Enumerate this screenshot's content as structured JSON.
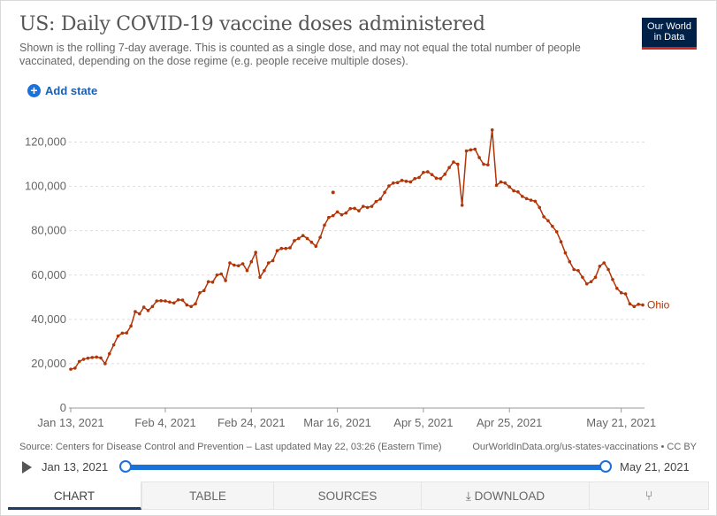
{
  "header": {
    "title": "US: Daily COVID-19 vaccine doses administered",
    "subtitle": "Shown is the rolling 7-day average. This is counted as a single dose, and may not equal the total number of people vaccinated, depending on the dose regime (e.g. people receive multiple doses).",
    "logo_line1": "Our World",
    "logo_line2": "in Data",
    "brand_color": "#002147",
    "brand_accent": "#ce261e"
  },
  "controls": {
    "add_state_label": "Add state"
  },
  "footer": {
    "source": "Source: Centers for Disease Control and Prevention – Last updated May 22, 03:26 (Eastern Time)",
    "url": "OurWorldInData.org/us-states-vaccinations • CC BY"
  },
  "timeline": {
    "start_label": "Jan 13, 2021",
    "end_label": "May 21, 2021"
  },
  "tabs": [
    {
      "label": "CHART",
      "icon": ""
    },
    {
      "label": "TABLE",
      "icon": ""
    },
    {
      "label": "SOURCES",
      "icon": ""
    },
    {
      "label": "DOWNLOAD",
      "icon": "download-icon"
    },
    {
      "label": "",
      "icon": "share-icon"
    }
  ],
  "chart_data": {
    "type": "line",
    "title": "US: Daily COVID-19 vaccine doses administered",
    "xlabel": "",
    "ylabel": "",
    "x_start": "2021-01-13",
    "ylim": [
      0,
      125000
    ],
    "yticks": [
      0,
      20000,
      40000,
      60000,
      80000,
      100000,
      120000
    ],
    "ytick_labels": [
      "0",
      "20,000",
      "40,000",
      "60,000",
      "80,000",
      "100,000",
      "120,000"
    ],
    "xtick_labels": [
      "Jan 13, 2021",
      "Feb 4, 2021",
      "Feb 24, 2021",
      "Mar 16, 2021",
      "Apr 5, 2021",
      "Apr 25, 2021",
      "May 21, 2021"
    ],
    "grid": true,
    "series": [
      {
        "name": "Ohio",
        "color": "#b13507",
        "values": [
          17500,
          18000,
          21000,
          22000,
          22500,
          22800,
          23000,
          22600,
          20000,
          24500,
          28500,
          32500,
          33800,
          33900,
          37000,
          43500,
          42500,
          45500,
          44000,
          45800,
          48300,
          48400,
          48300,
          47800,
          47400,
          48800,
          48700,
          46500,
          45800,
          47000,
          52000,
          53000,
          57000,
          56800,
          60000,
          60500,
          57500,
          65500,
          64500,
          64200,
          65100,
          62000,
          66000,
          70200,
          59000,
          62000,
          65500,
          66500,
          71000,
          72000,
          72000,
          72300,
          75500,
          76500,
          77800,
          76500,
          74800,
          73000,
          77000,
          82500,
          86000,
          86800,
          88500,
          87200,
          88000,
          90000,
          90100,
          89000,
          91000,
          90500,
          91000,
          93200,
          94300,
          97300,
          100200,
          101500,
          101700,
          102700,
          102300,
          102000,
          103500,
          104000,
          106300,
          106600,
          105300,
          103700,
          103500,
          105500,
          108500,
          111000,
          110000,
          91500,
          116000,
          116500,
          116800,
          113000,
          110000,
          109700,
          125500,
          100500,
          102000,
          101500,
          99800,
          98000,
          97500,
          95500,
          94500,
          93800,
          93300,
          90500,
          86300,
          84500,
          82000,
          79500,
          75000,
          70000,
          66000,
          62500,
          62000,
          59000,
          56000,
          57000,
          59000,
          64000,
          65500,
          62500,
          58000,
          54000,
          52000,
          51500,
          47000,
          45800,
          46800,
          46500
        ],
        "outliers": [
          {
            "index": 61,
            "value": 97300
          }
        ]
      }
    ]
  }
}
